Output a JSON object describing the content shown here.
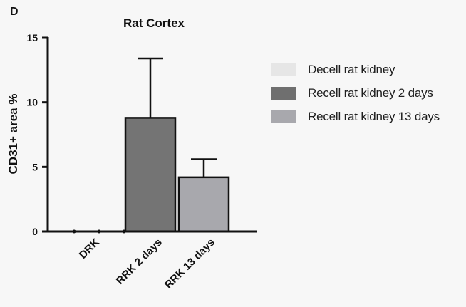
{
  "panel_label": "D",
  "chart_data": {
    "type": "bar",
    "title": "Rat Cortex",
    "xlabel": "",
    "ylabel": "CD31+ area %",
    "ylim": [
      0,
      15
    ],
    "yticks": [
      0,
      5,
      10,
      15
    ],
    "categories": [
      "DRK",
      "RRK 2 days",
      "RRK 13 days"
    ],
    "values": [
      0,
      8.8,
      4.2
    ],
    "error_upper": [
      0,
      13.4,
      5.6
    ],
    "colors": [
      "#e6e6e6",
      "#747474",
      "#a8a8ad"
    ],
    "legend": [
      {
        "label": "Decell rat kidney",
        "color": "#e6e6e6"
      },
      {
        "label": "Recell rat kidney 2 days",
        "color": "#6f6f6f"
      },
      {
        "label": "Recell rat kidney 13 days",
        "color": "#a8a8ad"
      }
    ],
    "legend_position": "right"
  }
}
